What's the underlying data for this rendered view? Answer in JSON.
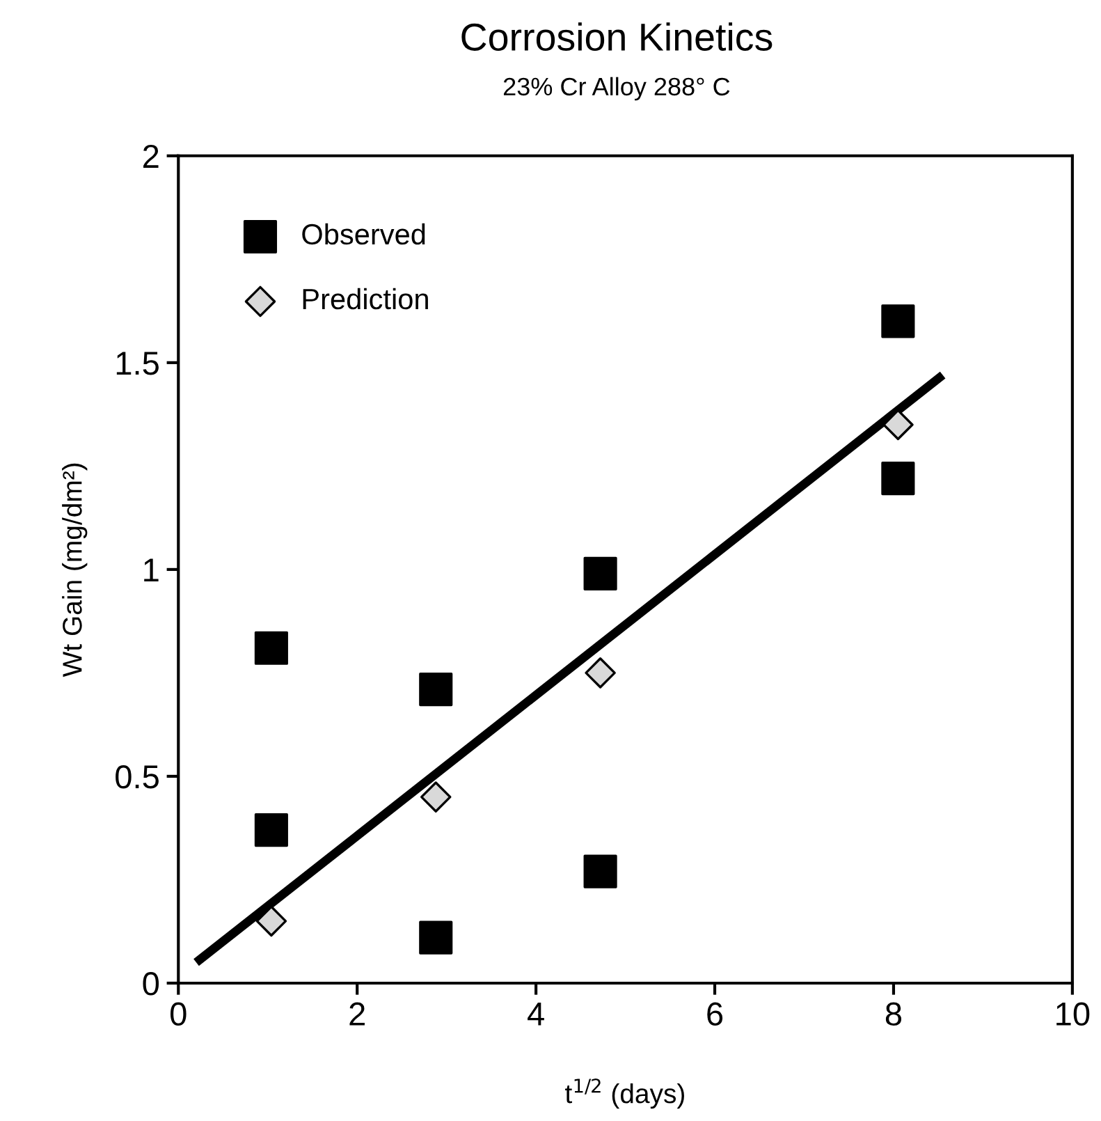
{
  "chart_data": {
    "type": "scatter",
    "title": "Corrosion Kinetics",
    "subtitle": "23% Cr Alloy 288° C",
    "xlabel": "t$^{1/2}$ (days)",
    "ylabel": "Wt Gain (mg/dm²)",
    "xlim": [
      0,
      10
    ],
    "xticks": [
      0,
      2,
      4,
      6,
      8,
      10
    ],
    "ylim": [
      0,
      2
    ],
    "yticks": [
      0,
      0.5,
      1,
      1.5,
      2
    ],
    "grid": false,
    "legend": "top left",
    "series": [
      {
        "name": "Observed",
        "marker": "square",
        "color": "#000000",
        "x": [
          1.04,
          1.04,
          2.88,
          2.88,
          4.72,
          4.72,
          8.05,
          8.05
        ],
        "values": [
          0.81,
          0.37,
          0.71,
          0.11,
          0.99,
          0.27,
          1.6,
          1.22
        ]
      },
      {
        "name": "Prediction",
        "marker": "diamond",
        "color": "#d9d9d9",
        "x": [
          1.04,
          2.88,
          4.72,
          8.05
        ],
        "values": [
          0.15,
          0.45,
          0.75,
          1.35
        ]
      },
      {
        "type": "line",
        "marker": "none",
        "line_style": "solid",
        "color": "#000000",
        "x": [
          0.2,
          8.55
        ],
        "values": [
          0.05,
          1.47
        ]
      }
    ]
  }
}
